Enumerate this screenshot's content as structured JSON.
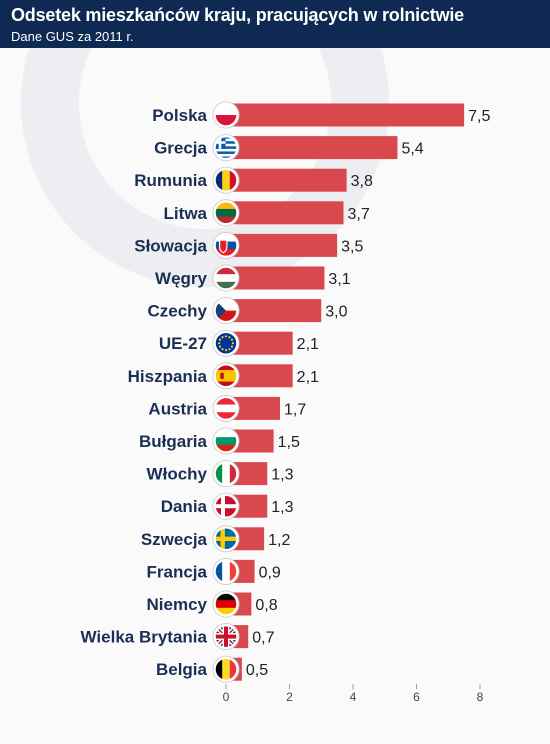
{
  "header": {
    "title": "Odsetek mieszkańców kraju, pracujących w rolnictwie",
    "subtitle": "Dane GUS za 2011 r."
  },
  "colors": {
    "header_bg": "#0f2a52",
    "bar": "#d9484d",
    "country_text": "#1b2f55",
    "value_text": "#222222"
  },
  "chart_data": {
    "type": "bar",
    "orientation": "horizontal",
    "title": "Odsetek mieszkańców kraju, pracujących w rolnictwie",
    "subtitle": "Dane GUS za 2011 r.",
    "categories": [
      "Polska",
      "Grecja",
      "Rumunia",
      "Litwa",
      "Słowacja",
      "Węgry",
      "Czechy",
      "UE-27",
      "Hiszpania",
      "Austria",
      "Bułgaria",
      "Włochy",
      "Dania",
      "Szwecja",
      "Francja",
      "Niemcy",
      "Wielka Brytania",
      "Belgia"
    ],
    "values": [
      7.5,
      5.4,
      3.8,
      3.7,
      3.5,
      3.1,
      3.0,
      2.1,
      2.1,
      1.7,
      1.5,
      1.3,
      1.3,
      1.2,
      0.9,
      0.8,
      0.7,
      0.5
    ],
    "value_labels": [
      "7,5",
      "5,4",
      "3,8",
      "3,7",
      "3,5",
      "3,1",
      "3,0",
      "2,1",
      "2,1",
      "1,7",
      "1,5",
      "1,3",
      "1,3",
      "1,2",
      "0,9",
      "0,8",
      "0,7",
      "0,5"
    ],
    "flag_icons": [
      "poland-flag-icon",
      "greece-flag-icon",
      "romania-flag-icon",
      "lithuania-flag-icon",
      "slovakia-flag-icon",
      "hungary-flag-icon",
      "czech-flag-icon",
      "eu-flag-icon",
      "spain-flag-icon",
      "austria-flag-icon",
      "bulgaria-flag-icon",
      "italy-flag-icon",
      "denmark-flag-icon",
      "sweden-flag-icon",
      "france-flag-icon",
      "germany-flag-icon",
      "uk-flag-icon",
      "belgium-flag-icon"
    ],
    "xlim": [
      0,
      8
    ],
    "xticks": [
      0,
      2,
      4,
      6,
      8
    ],
    "xtick_labels": [
      "0",
      "2",
      "4",
      "6",
      "8"
    ],
    "xlabel": "",
    "ylabel": "",
    "grid": false,
    "legend": "none"
  }
}
